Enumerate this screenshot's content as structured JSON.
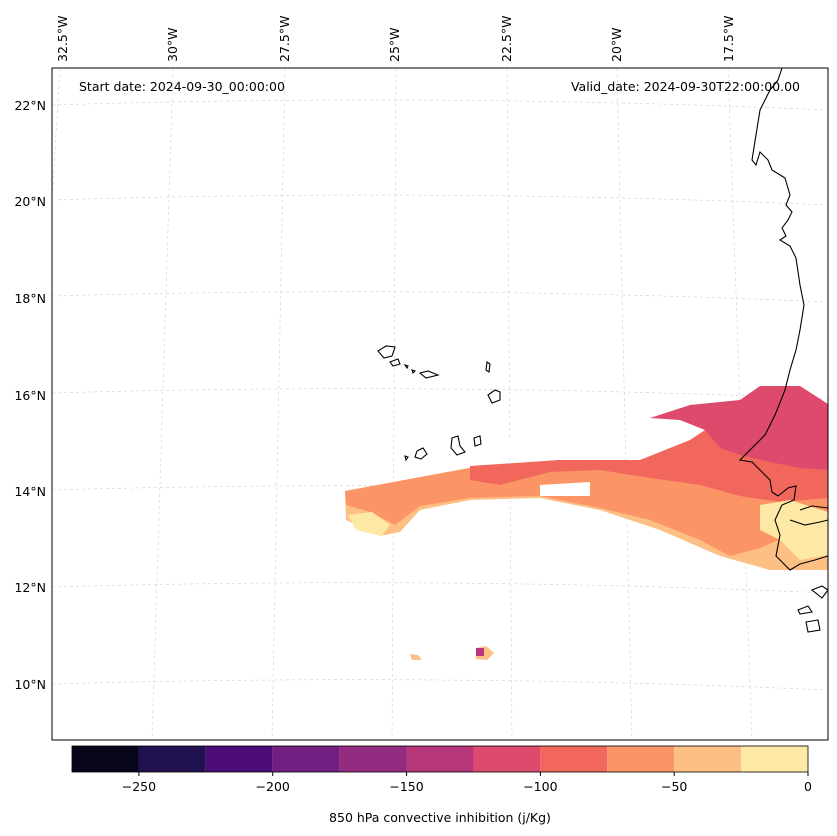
{
  "header": {
    "start_date": "Start date: 2024-09-30_00:00:00",
    "valid_date": "Valid_date: 2024-09-30T22:00:00.00"
  },
  "longitude_labels": [
    "32.5°W",
    "30°W",
    "27.5°W",
    "25°W",
    "22.5°W",
    "20°W",
    "17.5°W"
  ],
  "latitude_labels": [
    "22°N",
    "20°N",
    "18°N",
    "16°N",
    "14°N",
    "12°N",
    "10°N"
  ],
  "colorbar": {
    "label": "850 hPa convective inhibition (j/Kg)",
    "tick_labels": [
      "−250",
      "−200",
      "−150",
      "−100",
      "−50",
      "0"
    ],
    "min": -275,
    "max": 0,
    "step": 25,
    "colors": [
      "#06051a",
      "#221150",
      "#4b0c77",
      "#721f81",
      "#932b80",
      "#b8367a",
      "#dd4a6b",
      "#f2675c",
      "#fc9566",
      "#febf84",
      "#fde9a5"
    ]
  },
  "chart_data": {
    "type": "filled-contour-map",
    "variable": "850 hPa convective inhibition",
    "units": "j/Kg",
    "levels": [
      -275,
      -250,
      -225,
      -200,
      -175,
      -150,
      -125,
      -100,
      -75,
      -50,
      -25,
      0
    ],
    "lon_range": [
      "33°W",
      "16°W"
    ],
    "lat_range": [
      "9°N",
      "22.8°N"
    ],
    "start_date": "2024-09-30_00:00:00",
    "valid_date": "2024-09-30T22:00:00.00"
  }
}
